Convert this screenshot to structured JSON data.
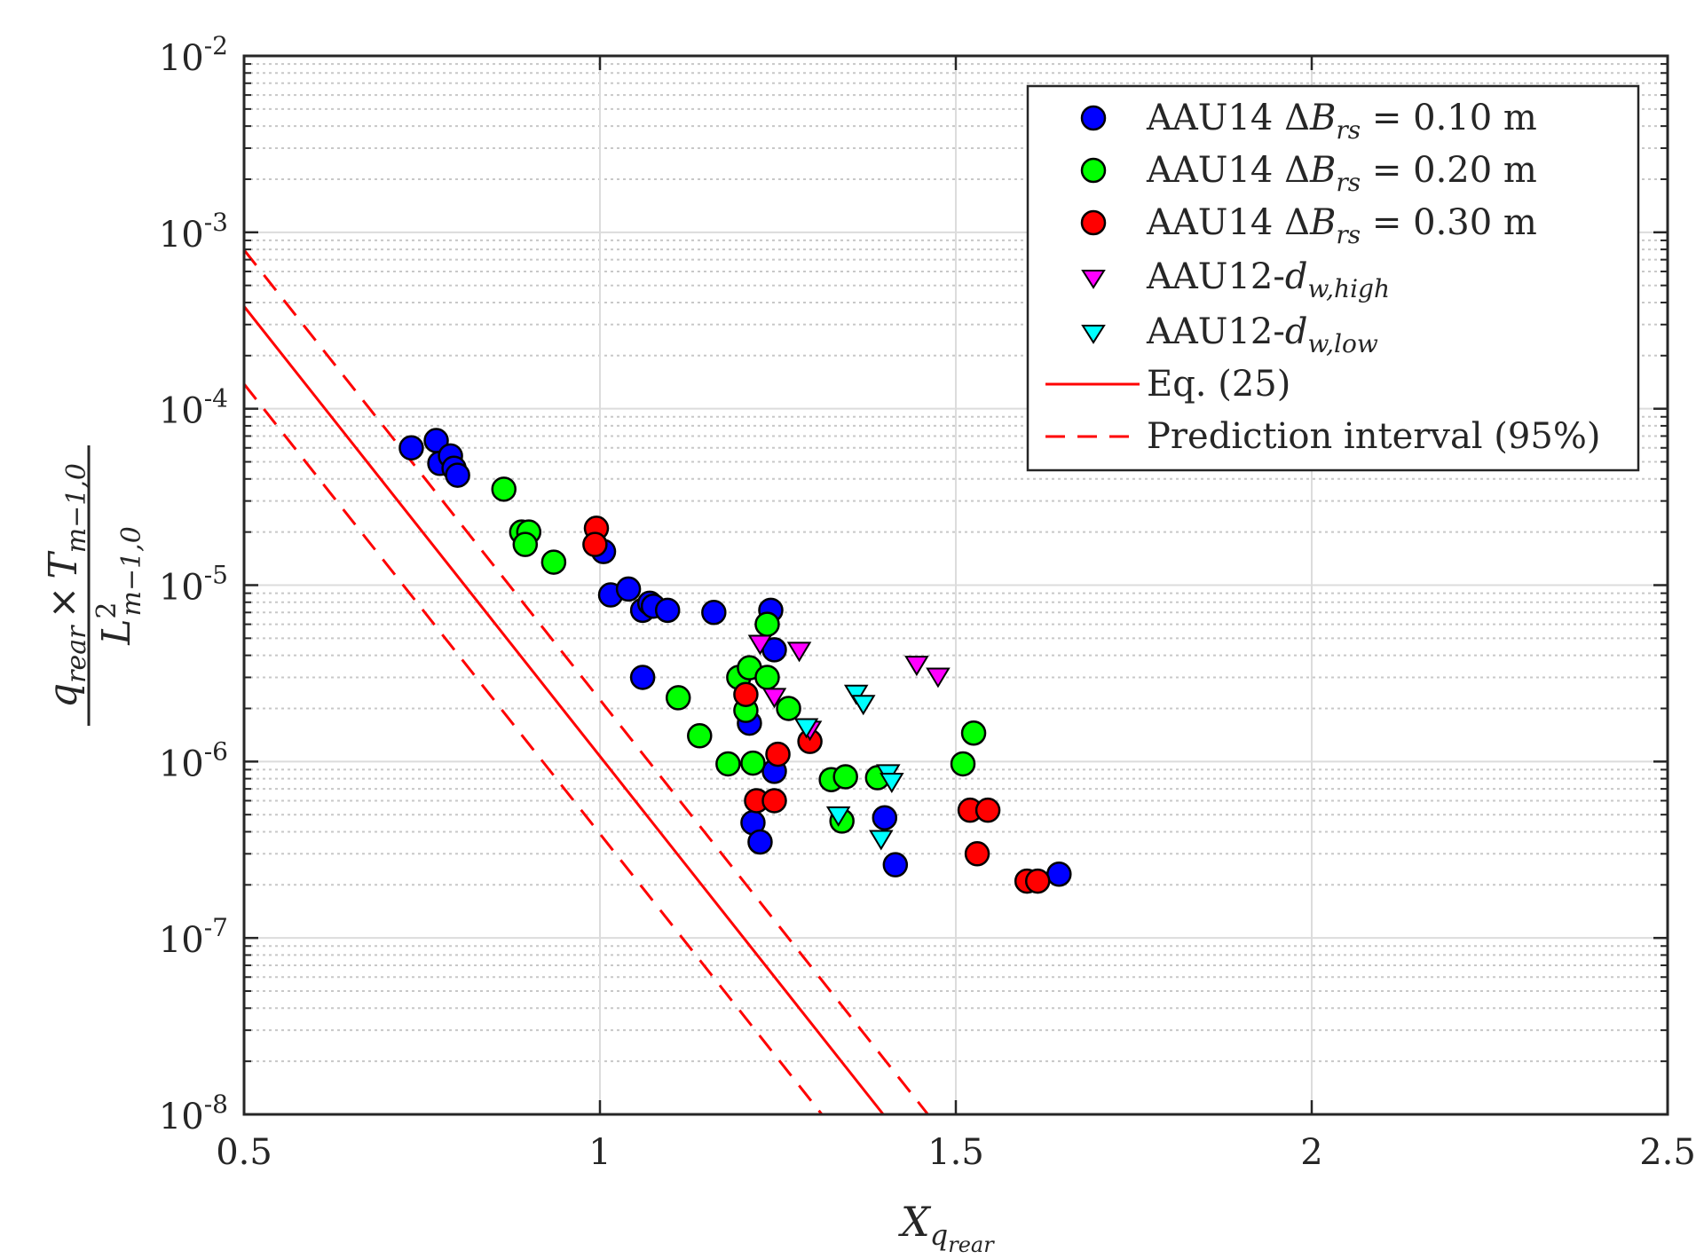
{
  "chart_data": {
    "type": "scatter",
    "title": "",
    "xlabel": "X",
    "xlabel_sub": "q",
    "xlabel_subsub": "rear",
    "ylabel": {
      "numerator_q": "q",
      "numerator_q_sub": "rear",
      "times": "×",
      "numerator_T": "T",
      "numerator_T_sub": "m−1,0",
      "denominator_L": "L",
      "denominator_L_sup": "2",
      "denominator_L_sub": "m−1,0"
    },
    "x_scale": "linear",
    "y_scale": "log",
    "xlim": [
      0.5,
      2.5
    ],
    "ylim": [
      1e-08,
      0.01
    ],
    "x_ticks": [
      0.5,
      1,
      1.5,
      2,
      2.5
    ],
    "x_tick_labels": [
      "0.5",
      "1",
      "1.5",
      "2",
      "2.5"
    ],
    "y_ticks": [
      {
        "value": 1e-08,
        "base": "10",
        "exp": "-8"
      },
      {
        "value": 1e-07,
        "base": "10",
        "exp": "-7"
      },
      {
        "value": 1e-06,
        "base": "10",
        "exp": "-6"
      },
      {
        "value": 1e-05,
        "base": "10",
        "exp": "-5"
      },
      {
        "value": 0.0001,
        "base": "10",
        "exp": "-4"
      },
      {
        "value": 0.001,
        "base": "10",
        "exp": "-3"
      },
      {
        "value": 0.01,
        "base": "10",
        "exp": "-2"
      }
    ],
    "grid": true,
    "minor_grid": true,
    "legend_position": "top-right",
    "series": [
      {
        "name": "AAU14 ΔB_rs = 0.10 m",
        "legend": {
          "prefix": "AAU14 ",
          "delta": "Δ",
          "var": "B",
          "sub": "rs",
          "suffix": " = 0.10 m"
        },
        "marker": "circle",
        "color": "#0000ff",
        "points": [
          [
            0.735,
            6e-05
          ],
          [
            0.77,
            6.6e-05
          ],
          [
            0.775,
            4.9e-05
          ],
          [
            0.79,
            5.4e-05
          ],
          [
            0.795,
            4.6e-05
          ],
          [
            0.8,
            4.2e-05
          ],
          [
            1.005,
            1.55e-05
          ],
          [
            1.015,
            8.8e-06
          ],
          [
            1.04,
            9.5e-06
          ],
          [
            1.06,
            7.2e-06
          ],
          [
            1.07,
            7.9e-06
          ],
          [
            1.075,
            7.6e-06
          ],
          [
            1.095,
            7.2e-06
          ],
          [
            1.06,
            3e-06
          ],
          [
            1.16,
            7e-06
          ],
          [
            1.24,
            7.2e-06
          ],
          [
            1.245,
            4.3e-06
          ],
          [
            1.21,
            1.65e-06
          ],
          [
            1.245,
            8.8e-07
          ],
          [
            1.215,
            4.5e-07
          ],
          [
            1.225,
            3.5e-07
          ],
          [
            1.4,
            4.8e-07
          ],
          [
            1.415,
            2.6e-07
          ],
          [
            1.645,
            2.3e-07
          ]
        ]
      },
      {
        "name": "AAU14 ΔB_rs = 0.20 m",
        "legend": {
          "prefix": "AAU14 ",
          "delta": "Δ",
          "var": "B",
          "sub": "rs",
          "suffix": " = 0.20 m"
        },
        "marker": "circle",
        "color": "#00ff00",
        "points": [
          [
            0.865,
            3.5e-05
          ],
          [
            0.89,
            2e-05
          ],
          [
            0.9,
            2e-05
          ],
          [
            0.895,
            1.7e-05
          ],
          [
            0.935,
            1.35e-05
          ],
          [
            1.235,
            6e-06
          ],
          [
            1.195,
            3e-06
          ],
          [
            1.21,
            3.4e-06
          ],
          [
            1.235,
            3e-06
          ],
          [
            1.205,
            1.95e-06
          ],
          [
            1.265,
            2e-06
          ],
          [
            1.11,
            2.3e-06
          ],
          [
            1.14,
            1.4e-06
          ],
          [
            1.18,
            9.7e-07
          ],
          [
            1.215,
            9.8e-07
          ],
          [
            1.325,
            7.9e-07
          ],
          [
            1.345,
            8.2e-07
          ],
          [
            1.39,
            8.1e-07
          ],
          [
            1.34,
            4.6e-07
          ],
          [
            1.51,
            9.7e-07
          ],
          [
            1.525,
            1.45e-06
          ]
        ]
      },
      {
        "name": "AAU14 ΔB_rs = 0.30 m",
        "legend": {
          "prefix": "AAU14 ",
          "delta": "Δ",
          "var": "B",
          "sub": "rs",
          "suffix": " = 0.30 m"
        },
        "marker": "circle",
        "color": "#ff0000",
        "points": [
          [
            0.995,
            2.1e-05
          ],
          [
            0.993,
            1.7e-05
          ],
          [
            1.205,
            2.4e-06
          ],
          [
            1.25,
            1.1e-06
          ],
          [
            1.295,
            1.3e-06
          ],
          [
            1.22,
            6e-07
          ],
          [
            1.245,
            6e-07
          ],
          [
            1.52,
            5.3e-07
          ],
          [
            1.545,
            5.3e-07
          ],
          [
            1.53,
            3e-07
          ],
          [
            1.6,
            2.1e-07
          ],
          [
            1.615,
            2.1e-07
          ]
        ]
      },
      {
        "name": "AAU12-d_w,high",
        "legend": {
          "prefix": "AAU12-",
          "var": "d",
          "sub": "w,high",
          "suffix": ""
        },
        "marker": "triangle-down",
        "color": "#ff00ff",
        "points": [
          [
            1.225,
            4.6e-06
          ],
          [
            1.28,
            4.2e-06
          ],
          [
            1.245,
            2.3e-06
          ],
          [
            1.295,
            1.5e-06
          ],
          [
            1.445,
            3.5e-06
          ],
          [
            1.475,
            3e-06
          ]
        ]
      },
      {
        "name": "AAU12-d_w,low",
        "legend": {
          "prefix": "AAU12-",
          "var": "d",
          "sub": "w,low",
          "suffix": ""
        },
        "marker": "triangle-down",
        "color": "#00ffff",
        "points": [
          [
            1.36,
            2.4e-06
          ],
          [
            1.37,
            2.1e-06
          ],
          [
            1.29,
            1.55e-06
          ],
          [
            1.335,
            4.9e-07
          ],
          [
            1.405,
            8.5e-07
          ],
          [
            1.41,
            7.6e-07
          ],
          [
            1.395,
            3.6e-07
          ]
        ]
      }
    ],
    "lines": [
      {
        "name": "Eq. (25)",
        "style": "solid",
        "color": "#ff0000",
        "log10_intercept_at_x0_5": -3.42,
        "log10_slope": -5.1
      },
      {
        "name": "Prediction interval (95%)",
        "style": "dashed",
        "color": "#ff0000",
        "log10_intercept_at_x0_5": -3.1,
        "log10_slope": -5.1
      },
      {
        "name": "Prediction interval (95%) lower",
        "style": "dashed",
        "color": "#ff0000",
        "log10_intercept_at_x0_5": -3.86,
        "log10_slope": -5.1,
        "legend_hidden": true
      }
    ]
  }
}
